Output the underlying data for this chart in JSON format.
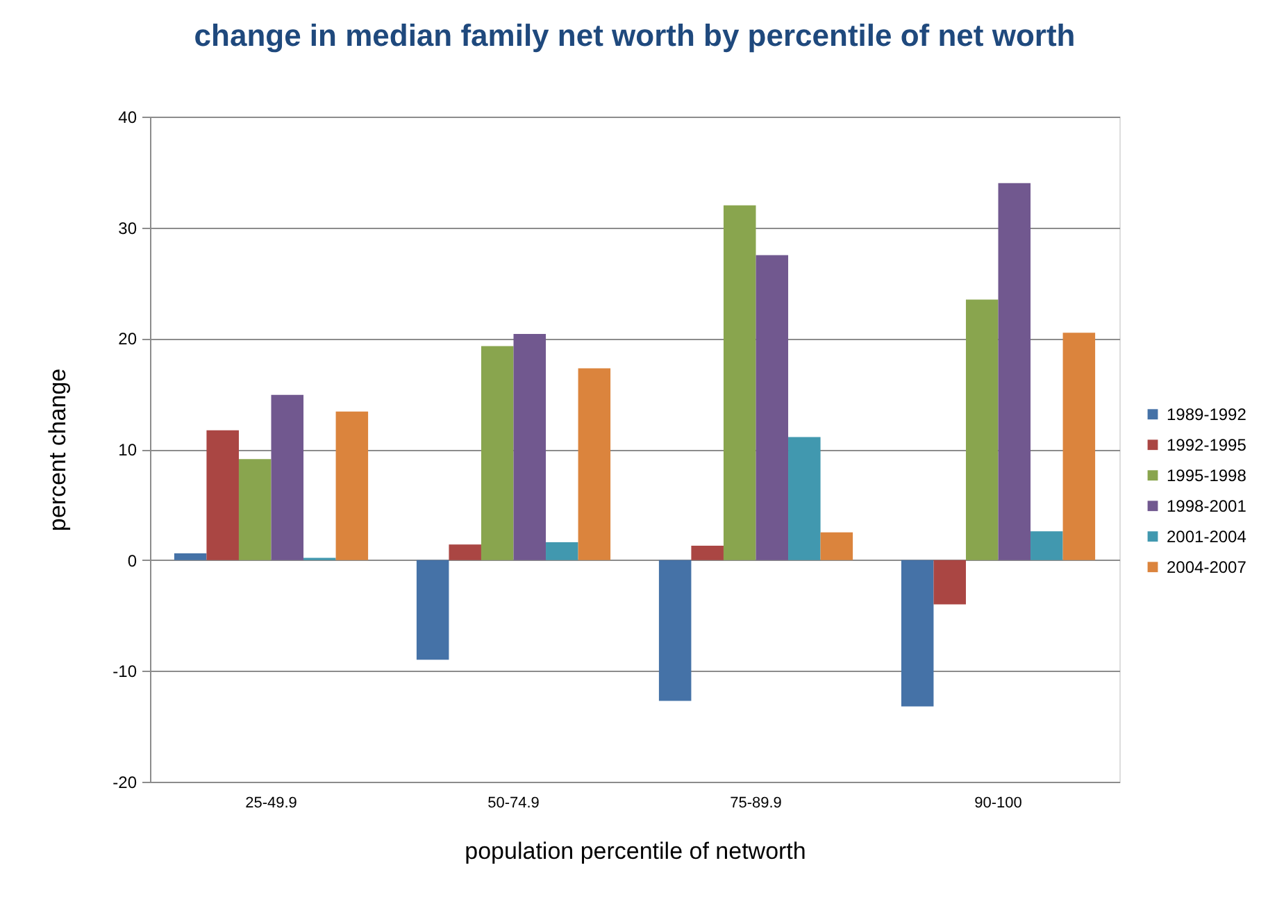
{
  "chart_data": {
    "type": "bar",
    "title": "change in median family net worth by percentile of net worth",
    "xlabel": "population percentile of networth",
    "ylabel": "percent change",
    "categories": [
      "25-49.9",
      "50-74.9",
      "75-89.9",
      "90-100"
    ],
    "series": [
      {
        "name": "1989-1992",
        "color": "#4572a7",
        "values": [
          0.6,
          -9.0,
          -12.7,
          -13.2
        ]
      },
      {
        "name": "1992-1995",
        "color": "#aa4643",
        "values": [
          11.7,
          1.4,
          1.3,
          -4.0
        ]
      },
      {
        "name": "1995-1998",
        "color": "#89a54e",
        "values": [
          9.1,
          19.3,
          32.0,
          23.5
        ]
      },
      {
        "name": "1998-2001",
        "color": "#71588f",
        "values": [
          14.9,
          20.4,
          27.5,
          34.0
        ]
      },
      {
        "name": "2001-2004",
        "color": "#4198af",
        "values": [
          0.2,
          1.6,
          11.1,
          2.6
        ]
      },
      {
        "name": "2004-2007",
        "color": "#db843d",
        "values": [
          13.4,
          17.3,
          2.5,
          20.5
        ]
      }
    ],
    "ylim": [
      -20,
      40
    ],
    "yticks": [
      -20,
      -10,
      0,
      10,
      20,
      30,
      40
    ],
    "grid": "y",
    "legend": "right"
  }
}
